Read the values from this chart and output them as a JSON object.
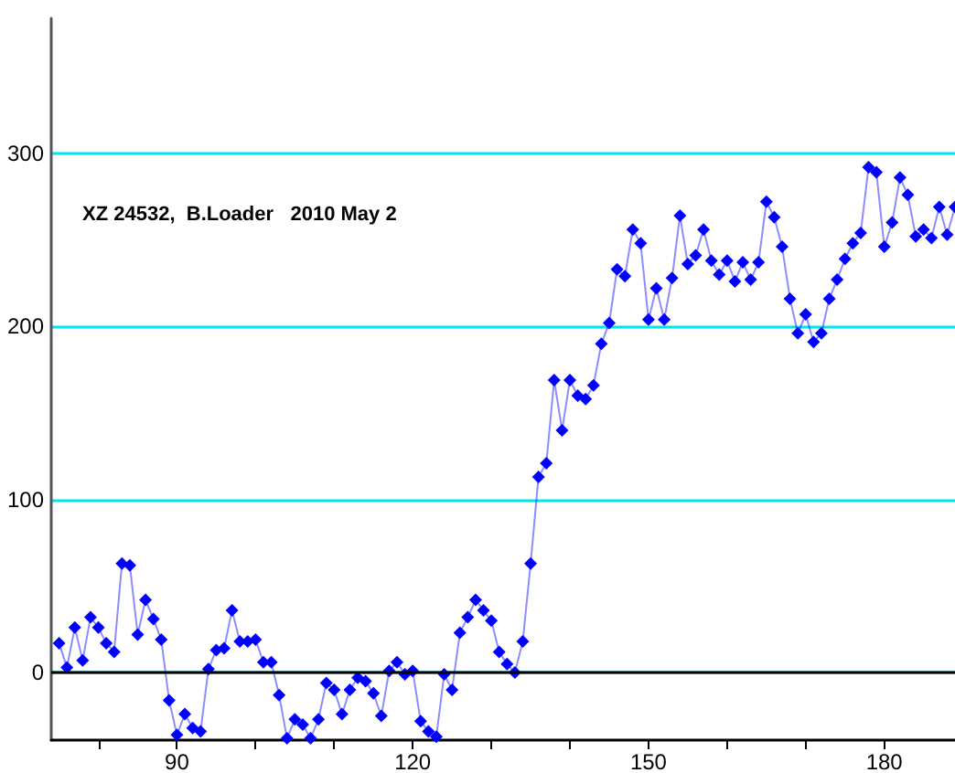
{
  "chart_data": {
    "type": "line",
    "annotations": [
      "XZ 24532,  B.Loader   2010 May 2"
    ],
    "x": [
      75,
      76,
      77,
      78,
      79,
      80,
      81,
      82,
      83,
      84,
      85,
      86,
      87,
      88,
      89,
      90,
      91,
      92,
      93,
      94,
      95,
      96,
      97,
      98,
      99,
      100,
      101,
      102,
      103,
      104,
      105,
      106,
      107,
      108,
      109,
      110,
      111,
      112,
      113,
      114,
      115,
      116,
      117,
      118,
      119,
      120,
      121,
      122,
      123,
      124,
      125,
      126,
      127,
      128,
      129,
      130,
      131,
      132,
      133,
      134,
      135,
      136,
      137,
      138,
      139,
      140,
      141,
      142,
      143,
      144,
      145,
      146,
      147,
      148,
      149,
      150,
      151,
      152,
      153,
      154,
      155,
      156,
      157,
      158,
      159,
      160,
      161,
      162,
      163,
      164,
      165,
      166,
      167,
      168,
      169,
      170,
      171,
      172,
      173,
      174,
      175,
      176,
      177,
      178,
      179,
      180,
      181,
      182,
      183,
      184,
      185,
      186,
      187,
      188,
      189
    ],
    "series": [
      {
        "color": "#0000ff",
        "values": [
          17,
          3,
          26,
          7,
          32,
          26,
          17,
          12,
          63,
          62,
          22,
          42,
          31,
          19,
          -16,
          -36,
          -24,
          -32,
          -34,
          2,
          13,
          14,
          36,
          18,
          18,
          19,
          6,
          6,
          -13,
          -38,
          -27,
          -30,
          -38,
          -27,
          -6,
          -10,
          -24,
          -10,
          -3,
          -5,
          -12,
          -25,
          1,
          6,
          -1,
          1,
          -28,
          -34,
          -37,
          -1,
          -10,
          23,
          32,
          42,
          36,
          30,
          12,
          5,
          0,
          18,
          63,
          113,
          121,
          169,
          140,
          169,
          160,
          158,
          166,
          190,
          202,
          233,
          229,
          256,
          248,
          204,
          222,
          204,
          228,
          264,
          236,
          241,
          256,
          238,
          230,
          238,
          226,
          237,
          227,
          237,
          272,
          263,
          246,
          216,
          196,
          207,
          191,
          196,
          216,
          227,
          239,
          248,
          254,
          292,
          289,
          246,
          260,
          286,
          276,
          252,
          256,
          251,
          269,
          253,
          269
        ]
      }
    ],
    "xlim": [
      74,
      189
    ],
    "ylim": [
      -39,
      378
    ],
    "xticks": [
      {
        "value": 80,
        "label": null
      },
      90,
      {
        "value": 100,
        "label": null
      },
      {
        "value": 110,
        "label": null
      },
      120,
      {
        "value": 130,
        "label": null
      },
      {
        "value": 140,
        "label": null
      },
      150,
      {
        "value": 160,
        "label": null
      },
      {
        "value": 170,
        "label": null
      },
      180
    ],
    "yticks": [
      0,
      100,
      200,
      300
    ],
    "grid": "y",
    "marker": "diamond",
    "line_style": "solid",
    "ref_lines": [
      {
        "axis": "y",
        "value": 0,
        "label": null,
        "color": "#000000"
      }
    ]
  }
}
